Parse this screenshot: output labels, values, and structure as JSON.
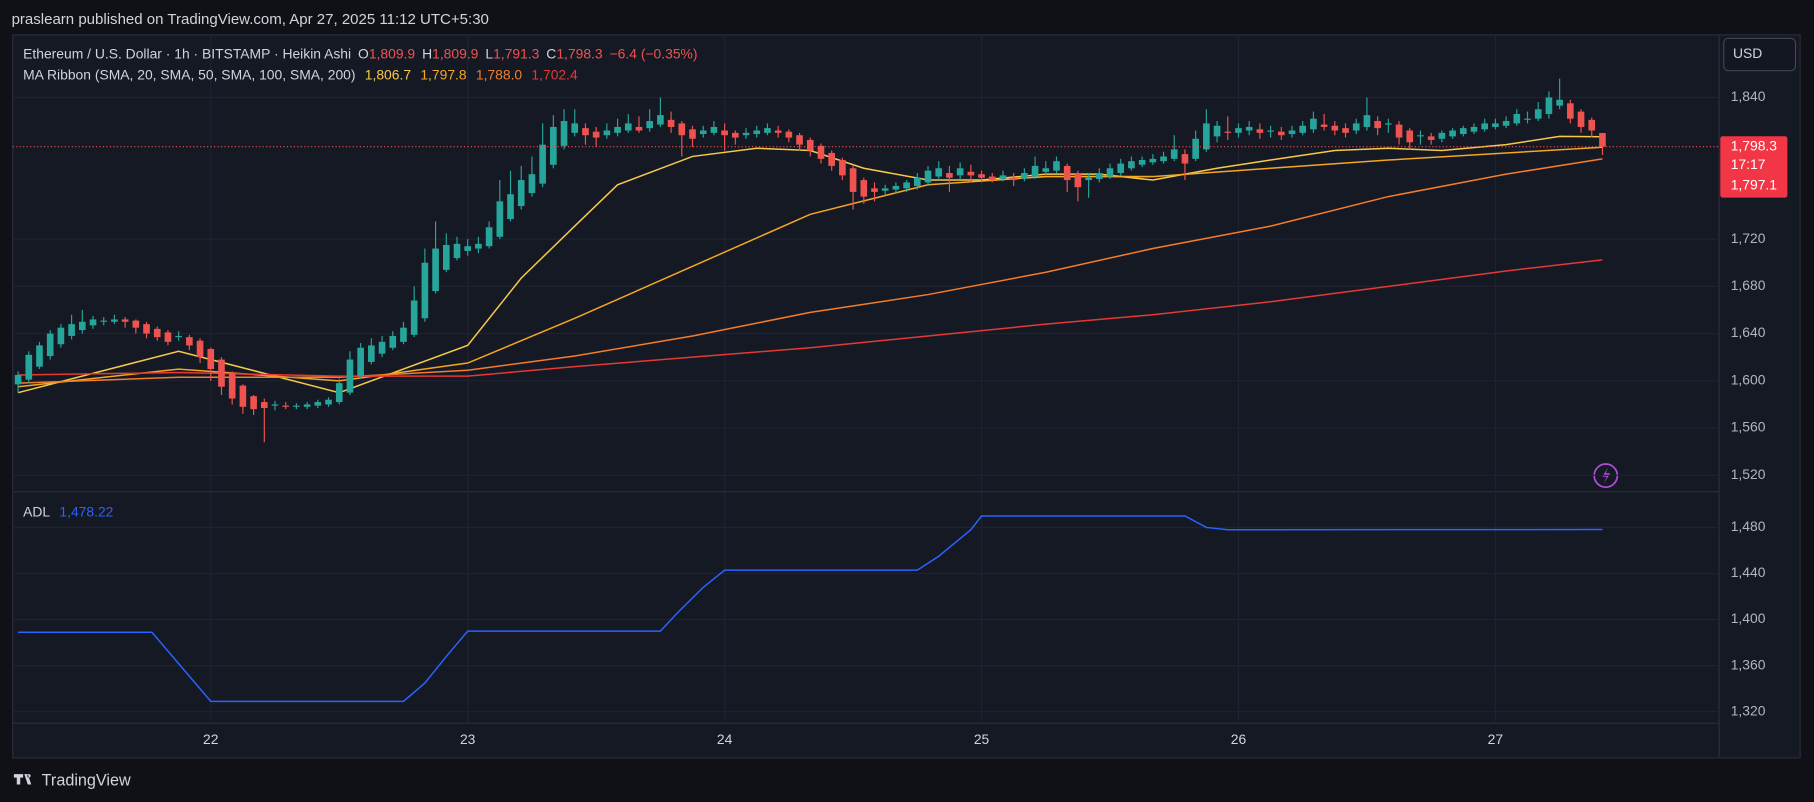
{
  "header": {
    "attribution": "praslearn published on TradingView.com, Apr 27, 2025 11:12 UTC+5:30",
    "brand": "TradingView"
  },
  "chart_data": [
    {
      "type": "candlestick",
      "title": "Ethereum / U.S. Dollar · 1h · BITSTAMP · Heikin Ashi",
      "currency": "USD",
      "ohlc_legend": [
        {
          "key": "O",
          "label": "1,809.9"
        },
        {
          "key": "H",
          "label": "1,809.9"
        },
        {
          "key": "L",
          "label": "1,791.3"
        },
        {
          "key": "C",
          "label": "1,798.3"
        }
      ],
      "change": "−6.4 (−0.35%)",
      "up_color": "#26a69a",
      "down_color": "#ef5350",
      "xlim": [
        -0.5,
        158.9
      ],
      "ylim": [
        1506,
        1893
      ],
      "yticks": [
        {
          "value": 1520,
          "label": "1,520"
        },
        {
          "value": 1560,
          "label": "1,560"
        },
        {
          "value": 1600,
          "label": "1,600"
        },
        {
          "value": 1640,
          "label": "1,640"
        },
        {
          "value": 1680,
          "label": "1,680"
        },
        {
          "value": 1720,
          "label": "1,720"
        },
        {
          "value": 1840,
          "label": "1,840"
        }
      ],
      "grid": true,
      "last_price": {
        "value": 1798.3,
        "label": "1,798.3"
      },
      "countdown": "17:17",
      "secondary_price": {
        "value": 1797.1,
        "label": "1,797.1"
      },
      "ohlc": [
        [
          1597,
          1608,
          1590,
          1605
        ],
        [
          1601,
          1625,
          1598,
          1622
        ],
        [
          1612,
          1633,
          1610,
          1630
        ],
        [
          1621,
          1643,
          1618,
          1640
        ],
        [
          1631,
          1648,
          1628,
          1645
        ],
        [
          1638,
          1656,
          1635,
          1648
        ],
        [
          1643,
          1660,
          1640,
          1650
        ],
        [
          1647,
          1655,
          1644,
          1652
        ],
        [
          1650,
          1654,
          1647,
          1651
        ],
        [
          1650,
          1656,
          1648,
          1652
        ],
        [
          1652,
          1654,
          1645,
          1650
        ],
        [
          1651,
          1652,
          1640,
          1645
        ],
        [
          1648,
          1650,
          1636,
          1640
        ],
        [
          1644,
          1646,
          1634,
          1637
        ],
        [
          1641,
          1643,
          1630,
          1633
        ],
        [
          1637,
          1642,
          1634,
          1638
        ],
        [
          1637,
          1639,
          1626,
          1630
        ],
        [
          1634,
          1636,
          1615,
          1620
        ],
        [
          1627,
          1628,
          1600,
          1610
        ],
        [
          1618,
          1620,
          1588,
          1595
        ],
        [
          1607,
          1608,
          1580,
          1585
        ],
        [
          1596,
          1597,
          1572,
          1578
        ],
        [
          1587,
          1588,
          1571,
          1576
        ],
        [
          1582,
          1585,
          1548,
          1577
        ],
        [
          1579,
          1583,
          1575,
          1580
        ],
        [
          1579,
          1582,
          1576,
          1578
        ],
        [
          1578,
          1581,
          1576,
          1579
        ],
        [
          1578,
          1582,
          1576,
          1580
        ],
        [
          1579,
          1584,
          1577,
          1582
        ],
        [
          1580,
          1586,
          1578,
          1584
        ],
        [
          1582,
          1602,
          1580,
          1598
        ],
        [
          1590,
          1625,
          1588,
          1618
        ],
        [
          1604,
          1632,
          1602,
          1628
        ],
        [
          1616,
          1636,
          1614,
          1630
        ],
        [
          1623,
          1638,
          1620,
          1633
        ],
        [
          1628,
          1642,
          1626,
          1638
        ],
        [
          1633,
          1650,
          1631,
          1645
        ],
        [
          1639,
          1680,
          1637,
          1668
        ],
        [
          1653,
          1712,
          1650,
          1700
        ],
        [
          1676,
          1735,
          1674,
          1712
        ],
        [
          1694,
          1725,
          1692,
          1715
        ],
        [
          1704,
          1722,
          1702,
          1716
        ],
        [
          1710,
          1720,
          1706,
          1714
        ],
        [
          1712,
          1722,
          1708,
          1716
        ],
        [
          1714,
          1735,
          1712,
          1730
        ],
        [
          1722,
          1770,
          1720,
          1752
        ],
        [
          1737,
          1778,
          1735,
          1758
        ],
        [
          1748,
          1782,
          1745,
          1770
        ],
        [
          1759,
          1790,
          1756,
          1775
        ],
        [
          1767,
          1818,
          1764,
          1800
        ],
        [
          1783,
          1825,
          1780,
          1815
        ],
        [
          1799,
          1830,
          1796,
          1820
        ],
        [
          1810,
          1830,
          1807,
          1818
        ],
        [
          1814,
          1818,
          1800,
          1808
        ],
        [
          1811,
          1815,
          1798,
          1806
        ],
        [
          1808,
          1818,
          1805,
          1812
        ],
        [
          1810,
          1822,
          1807,
          1815
        ],
        [
          1812,
          1826,
          1810,
          1818
        ],
        [
          1815,
          1824,
          1810,
          1812
        ],
        [
          1814,
          1830,
          1811,
          1820
        ],
        [
          1817,
          1840,
          1815,
          1825
        ],
        [
          1821,
          1828,
          1810,
          1815
        ],
        [
          1818,
          1820,
          1790,
          1808
        ],
        [
          1813,
          1816,
          1798,
          1805
        ],
        [
          1809,
          1816,
          1806,
          1812
        ],
        [
          1810,
          1820,
          1808,
          1815
        ],
        [
          1812,
          1818,
          1795,
          1808
        ],
        [
          1810,
          1812,
          1800,
          1806
        ],
        [
          1808,
          1814,
          1805,
          1810
        ],
        [
          1809,
          1816,
          1806,
          1812
        ],
        [
          1810,
          1818,
          1808,
          1814
        ],
        [
          1812,
          1816,
          1806,
          1810
        ],
        [
          1811,
          1813,
          1802,
          1806
        ],
        [
          1808,
          1810,
          1795,
          1800
        ],
        [
          1804,
          1806,
          1790,
          1795
        ],
        [
          1799,
          1801,
          1784,
          1788
        ],
        [
          1793,
          1795,
          1778,
          1782
        ],
        [
          1787,
          1789,
          1770,
          1774
        ],
        [
          1780,
          1782,
          1745,
          1760
        ],
        [
          1770,
          1772,
          1750,
          1756
        ],
        [
          1763,
          1768,
          1752,
          1760
        ],
        [
          1761,
          1766,
          1757,
          1763
        ],
        [
          1762,
          1768,
          1759,
          1765
        ],
        [
          1763,
          1770,
          1760,
          1768
        ],
        [
          1765,
          1776,
          1762,
          1772
        ],
        [
          1768,
          1782,
          1765,
          1778
        ],
        [
          1773,
          1786,
          1770,
          1780
        ],
        [
          1776,
          1782,
          1760,
          1772
        ],
        [
          1774,
          1785,
          1770,
          1780
        ],
        [
          1777,
          1783,
          1768,
          1774
        ],
        [
          1775,
          1778,
          1768,
          1772
        ],
        [
          1773,
          1776,
          1768,
          1770
        ],
        [
          1771,
          1778,
          1769,
          1774
        ],
        [
          1772,
          1776,
          1765,
          1770
        ],
        [
          1771,
          1780,
          1769,
          1776
        ],
        [
          1773,
          1790,
          1771,
          1782
        ],
        [
          1777,
          1786,
          1774,
          1780
        ],
        [
          1778,
          1790,
          1776,
          1786
        ],
        [
          1782,
          1784,
          1760,
          1770
        ],
        [
          1776,
          1778,
          1752,
          1764
        ],
        [
          1770,
          1776,
          1755,
          1772
        ],
        [
          1771,
          1780,
          1768,
          1776
        ],
        [
          1773,
          1784,
          1771,
          1780
        ],
        [
          1776,
          1788,
          1774,
          1784
        ],
        [
          1780,
          1790,
          1778,
          1786
        ],
        [
          1783,
          1790,
          1781,
          1787
        ],
        [
          1785,
          1792,
          1783,
          1788
        ],
        [
          1786,
          1794,
          1784,
          1790
        ],
        [
          1788,
          1808,
          1786,
          1796
        ],
        [
          1792,
          1796,
          1770,
          1784
        ],
        [
          1788,
          1812,
          1786,
          1805
        ],
        [
          1796,
          1830,
          1794,
          1818
        ],
        [
          1807,
          1820,
          1802,
          1816
        ],
        [
          1811,
          1824,
          1804,
          1810
        ],
        [
          1810,
          1818,
          1806,
          1814
        ],
        [
          1812,
          1820,
          1808,
          1815
        ],
        [
          1813,
          1818,
          1805,
          1810
        ],
        [
          1811,
          1816,
          1806,
          1812
        ],
        [
          1811,
          1815,
          1804,
          1808
        ],
        [
          1809,
          1816,
          1806,
          1812
        ],
        [
          1810,
          1820,
          1808,
          1816
        ],
        [
          1813,
          1828,
          1810,
          1822
        ],
        [
          1817,
          1826,
          1812,
          1815
        ],
        [
          1816,
          1820,
          1808,
          1812
        ],
        [
          1814,
          1818,
          1806,
          1810
        ],
        [
          1812,
          1822,
          1809,
          1818
        ],
        [
          1815,
          1840,
          1812,
          1825
        ],
        [
          1820,
          1824,
          1808,
          1814
        ],
        [
          1817,
          1822,
          1810,
          1818
        ],
        [
          1817,
          1820,
          1800,
          1806
        ],
        [
          1812,
          1814,
          1796,
          1802
        ],
        [
          1807,
          1812,
          1800,
          1808
        ],
        [
          1807,
          1810,
          1800,
          1804
        ],
        [
          1805,
          1812,
          1802,
          1810
        ],
        [
          1807,
          1814,
          1805,
          1812
        ],
        [
          1809,
          1816,
          1807,
          1814
        ],
        [
          1811,
          1818,
          1809,
          1815
        ],
        [
          1813,
          1822,
          1811,
          1818
        ],
        [
          1815,
          1822,
          1813,
          1818
        ],
        [
          1816,
          1824,
          1814,
          1820
        ],
        [
          1818,
          1830,
          1816,
          1826
        ],
        [
          1822,
          1828,
          1818,
          1822
        ],
        [
          1822,
          1836,
          1820,
          1830
        ],
        [
          1826,
          1845,
          1822,
          1840
        ],
        [
          1833,
          1856,
          1830,
          1838
        ],
        [
          1835,
          1838,
          1818,
          1822
        ],
        [
          1828,
          1830,
          1810,
          1815
        ],
        [
          1821,
          1823,
          1806,
          1812
        ],
        [
          1809.9,
          1809.9,
          1791.3,
          1798.3
        ]
      ],
      "overlay": {
        "name": "MA Ribbon (SMA, 20, SMA, 50, SMA, 100, SMA, 200)",
        "series": [
          {
            "color": "#f7c948",
            "value_label": "1,806.7",
            "x": [
              0,
              15,
              30,
              42,
              47,
              52,
              56,
              63,
              69,
              74,
              79,
              85,
              90,
              96,
              101,
              106,
              112,
              117,
              123,
              128,
              133,
              139,
              144,
              148
            ],
            "values": [
              1590,
              1625,
              1590,
              1630,
              1687,
              1731,
              1766,
              1790,
              1797,
              1795,
              1780,
              1770,
              1770,
              1775,
              1775,
              1770,
              1780,
              1787,
              1795,
              1797,
              1795,
              1800,
              1807,
              1806.7
            ]
          },
          {
            "color": "#f5a623",
            "value_label": "1,797.8",
            "x": [
              0,
              15,
              30,
              42,
              52,
              63,
              74,
              85,
              96,
              106,
              117,
              128,
              139,
              148
            ],
            "values": [
              1595,
              1610,
              1600,
              1615,
              1653,
              1697,
              1741,
              1766,
              1773,
              1773,
              1780,
              1787,
              1793,
              1797.8
            ]
          },
          {
            "color": "#f57c2a",
            "value_label": "1,788.0",
            "x": [
              0,
              15,
              30,
              42,
              52,
              63,
              74,
              85,
              96,
              106,
              117,
              128,
              139,
              148
            ],
            "values": [
              1598,
              1603,
              1603,
              1609,
              1621,
              1638,
              1658,
              1673,
              1692,
              1712,
              1731,
              1756,
              1775,
              1788
            ]
          },
          {
            "color": "#e53935",
            "value_label": "1,702.4",
            "x": [
              0,
              15,
              30,
              42,
              52,
              63,
              74,
              85,
              96,
              106,
              117,
              128,
              139,
              148
            ],
            "values": [
              1605,
              1607,
              1604,
              1604,
              1612,
              1620,
              1628,
              1638,
              1648,
              1656,
              1667,
              1680,
              1693,
              1702.4
            ]
          }
        ]
      }
    },
    {
      "type": "line",
      "title": "ADL",
      "xlim": [
        -0.5,
        158.9
      ],
      "ylim": [
        1310,
        1511
      ],
      "yticks": [
        {
          "value": 1320,
          "label": "1,320"
        },
        {
          "value": 1360,
          "label": "1,360"
        },
        {
          "value": 1400,
          "label": "1,400"
        },
        {
          "value": 1440,
          "label": "1,440"
        },
        {
          "value": 1480,
          "label": "1,480"
        }
      ],
      "xticks": [
        {
          "value": 18,
          "label": "22"
        },
        {
          "value": 42,
          "label": "23"
        },
        {
          "value": 66,
          "label": "24"
        },
        {
          "value": 90,
          "label": "25"
        },
        {
          "value": 114,
          "label": "26"
        },
        {
          "value": 138,
          "label": "27"
        }
      ],
      "grid": true,
      "series": [
        {
          "color": "#2962ff",
          "value_label": "1,478.22",
          "x": [
            0,
            12.5,
            18,
            36,
            38,
            40,
            42,
            60,
            61.5,
            64,
            66,
            84,
            86,
            89,
            90,
            109,
            111,
            113,
            148
          ],
          "values": [
            1389,
            1389,
            1329,
            1329,
            1345,
            1368,
            1390,
            1390,
            1405,
            1428,
            1443,
            1443,
            1455,
            1478,
            1490,
            1490,
            1480,
            1478,
            1478.22
          ]
        }
      ]
    }
  ]
}
